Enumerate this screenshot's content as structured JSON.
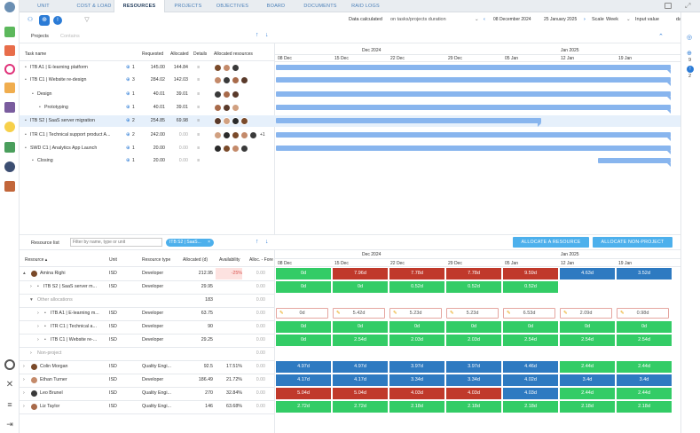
{
  "nav": {
    "tabs": [
      "UNIT",
      "COST & LOAD",
      "RESOURCES",
      "PROJECTS",
      "OBJECTIVES",
      "BOARD",
      "DOCUMENTS",
      "RAID LOGS"
    ],
    "active": "RESOURCES"
  },
  "toolbar": {
    "data_calculated_label": "Data calculated",
    "data_calculated_value": "on tasks/projects duration",
    "date_from": "08 December 2024",
    "date_to": "25 January 2025",
    "scale_label": "Scale",
    "scale_value": "Week",
    "input_value_label": "Input value",
    "input_value_unit": "day"
  },
  "rightbar": {
    "count1": "9",
    "count2": "2"
  },
  "top_tabs": {
    "projects": "Projects",
    "contains": "Contains"
  },
  "task_grid": {
    "headers": {
      "task_name": "Task name",
      "requested": "Requested",
      "allocated": "Allocated",
      "details": "Details",
      "resources": "Allocated resources"
    },
    "rows": [
      {
        "name": "ITB A1 | E-learning platform",
        "count": "1",
        "requested": "145.00",
        "allocated": "144.84",
        "extra": ""
      },
      {
        "name": "ITB C1 | Website re-design",
        "count": "3",
        "requested": "284.02",
        "allocated": "142.03",
        "extra": ""
      },
      {
        "name": "Design",
        "count": "1",
        "requested": "40.01",
        "allocated": "39.01",
        "extra": ""
      },
      {
        "name": "Prototyping",
        "count": "1",
        "requested": "40.01",
        "allocated": "39.01",
        "extra": ""
      },
      {
        "name": "ITB S2 | SaaS server migration",
        "count": "2",
        "requested": "254.85",
        "allocated": "69.98",
        "extra": ""
      },
      {
        "name": "ITR C1 | Technical support product A...",
        "count": "2",
        "requested": "242.00",
        "allocated": "0.00",
        "extra": "+1"
      },
      {
        "name": "SWD C1 | Analytics App Launch",
        "count": "1",
        "requested": "20.00",
        "allocated": "0.00",
        "extra": ""
      },
      {
        "name": "Closing",
        "count": "1",
        "requested": "20.00",
        "allocated": "0.00",
        "extra": ""
      }
    ]
  },
  "gantt": {
    "months": [
      "Dec 2024",
      "Jan 2025"
    ],
    "weeks": [
      "08 Dec",
      "15 Dec",
      "22 Dec",
      "29 Dec",
      "05 Jan",
      "12 Jan",
      "19 Jan"
    ]
  },
  "resource_list": {
    "title": "Resource list",
    "filter_placeholder": "Filter by name, type or unit",
    "chip": "ITB S2 | SaaS...",
    "chip_close": "×",
    "allocate_resource": "ALLOCATE A RESOURCE",
    "allocate_non_project": "ALLOCATE NON-PROJECT",
    "headers": {
      "resource": "Resource",
      "unit": "Unit",
      "type": "Resource type",
      "allocated": "Allocated (d)",
      "availability": "Availability",
      "alloc_fore": "Alloc. - Fore"
    },
    "rows": [
      {
        "name": "Amina Righi",
        "unit": "ISD",
        "type": "Developer",
        "allocated": "212.95",
        "availability": "-25%",
        "fore": "0.00",
        "cells": [
          "0d",
          "7.96d",
          "7.78d",
          "7.78d",
          "9.59d",
          "4.63d",
          "3.52d"
        ],
        "colors": [
          "g",
          "r",
          "r",
          "r",
          "r",
          "b",
          "b"
        ]
      },
      {
        "name": "ITB S2 | SaaS server m...",
        "unit": "ISD",
        "type": "Developer",
        "allocated": "29.95",
        "availability": "",
        "fore": "0.00",
        "cells": [
          "0d",
          "0d",
          "0.52d",
          "0.52d",
          "0.52d",
          "",
          ""
        ],
        "colors": [
          "g",
          "g",
          "g",
          "g",
          "g",
          "",
          ""
        ]
      },
      {
        "name": "Other allocations",
        "unit": "",
        "type": "",
        "allocated": "183",
        "availability": "",
        "fore": "0.00",
        "cells": [
          "",
          "",
          "",
          "",
          "",
          "",
          ""
        ],
        "colors": [
          "",
          "",
          "",
          "",
          "",
          "",
          ""
        ]
      },
      {
        "name": "ITB A1 | E-learning m...",
        "unit": "ISD",
        "type": "Developer",
        "allocated": "63.75",
        "availability": "",
        "fore": "0.00",
        "cells": [
          "0d",
          "5.42d",
          "5.23d",
          "5.23d",
          "6.53d",
          "2.09d",
          "0.98d"
        ],
        "colors": [
          "w",
          "w",
          "w",
          "w",
          "w",
          "w",
          "w"
        ]
      },
      {
        "name": "ITR C1 | Technical a...",
        "unit": "ISD",
        "type": "Developer",
        "allocated": "90",
        "availability": "",
        "fore": "0.00",
        "cells": [
          "0d",
          "0d",
          "0d",
          "0d",
          "0d",
          "0d",
          "0d"
        ],
        "colors": [
          "g",
          "g",
          "g",
          "g",
          "g",
          "g",
          "g"
        ]
      },
      {
        "name": "ITB C1 | Website re-...",
        "unit": "ISD",
        "type": "Developer",
        "allocated": "29.25",
        "availability": "",
        "fore": "0.00",
        "cells": [
          "0d",
          "2.54d",
          "2.03d",
          "2.03d",
          "2.54d",
          "2.54d",
          "2.54d"
        ],
        "colors": [
          "g",
          "g",
          "g",
          "g",
          "g",
          "g",
          "g"
        ]
      },
      {
        "name": "Non-project",
        "unit": "",
        "type": "",
        "allocated": "",
        "availability": "",
        "fore": "0.00",
        "cells": [
          "",
          "",
          "",
          "",
          "",
          "",
          ""
        ],
        "colors": [
          "",
          "",
          "",
          "",
          "",
          "",
          ""
        ]
      },
      {
        "name": "Colin Morgan",
        "unit": "ISD",
        "type": "Quality Engi...",
        "allocated": "92.5",
        "availability": "17.51%",
        "fore": "0.00",
        "cells": [
          "4.97d",
          "4.97d",
          "3.97d",
          "3.97d",
          "4.46d",
          "2.44d",
          "2.44d"
        ],
        "colors": [
          "b",
          "b",
          "b",
          "b",
          "b",
          "g",
          "g"
        ]
      },
      {
        "name": "Ethan Turner",
        "unit": "ISD",
        "type": "Developer",
        "allocated": "186.49",
        "availability": "21.72%",
        "fore": "0.00",
        "cells": [
          "4.17d",
          "4.17d",
          "3.34d",
          "3.34d",
          "4.02d",
          "3.4d",
          "3.4d"
        ],
        "colors": [
          "b",
          "b",
          "b",
          "b",
          "b",
          "b",
          "b"
        ]
      },
      {
        "name": "Leo Brunel",
        "unit": "ISD",
        "type": "Quality Engi...",
        "allocated": "270",
        "availability": "32.84%",
        "fore": "0.00",
        "cells": [
          "5.04d",
          "5.04d",
          "4.03d",
          "4.03d",
          "4.03d",
          "2.44d",
          "2.44d"
        ],
        "colors": [
          "r",
          "r",
          "r",
          "r",
          "b",
          "g",
          "g"
        ]
      },
      {
        "name": "Liz Taylor",
        "unit": "ISD",
        "type": "Quality Engi...",
        "allocated": "146",
        "availability": "63.68%",
        "fore": "0.00",
        "cells": [
          "2.72d",
          "2.72d",
          "2.18d",
          "2.18d",
          "2.18d",
          "2.18d",
          "2.18d"
        ],
        "colors": [
          "g",
          "g",
          "g",
          "g",
          "g",
          "g",
          "g"
        ]
      }
    ]
  }
}
